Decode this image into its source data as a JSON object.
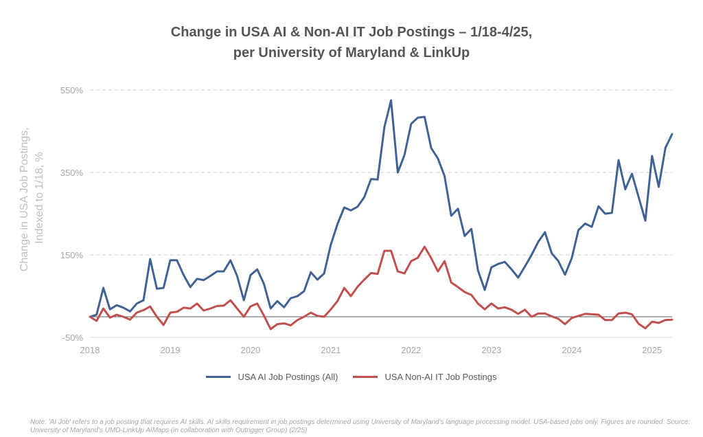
{
  "chart_data": {
    "type": "line",
    "title": "Change in USA AI & Non-AI IT Job Postings – 1/18-4/25,",
    "subtitle": "per University of Maryland & LinkUp",
    "ylabel": "Change in USA Job Postings, Indexed to 1/18, %",
    "ylabel_lines": [
      "Change in USA Job Postings,",
      "Indexed to 1/18, %"
    ],
    "xlabel": "",
    "ylim": [
      -50,
      550
    ],
    "xlim": [
      2018.0,
      2025.25
    ],
    "y_ticks": [
      -50,
      150,
      350,
      550
    ],
    "y_tick_labels": [
      "-50%",
      "150%",
      "350%",
      "550%"
    ],
    "x_ticks": [
      2018,
      2019,
      2020,
      2021,
      2022,
      2023,
      2024,
      2025
    ],
    "x_tick_labels": [
      "2018",
      "2019",
      "2020",
      "2021",
      "2022",
      "2023",
      "2024",
      "2025"
    ],
    "grid": true,
    "legend_position": "bottom",
    "series": [
      {
        "name": "USA AI Job Postings (All)",
        "color": "#3f6293",
        "values": [
          0,
          5,
          70,
          18,
          28,
          22,
          13,
          32,
          40,
          140,
          68,
          70,
          137,
          137,
          101,
          72,
          92,
          89,
          99,
          110,
          110,
          137,
          99,
          40,
          101,
          115,
          80,
          20,
          38,
          23,
          45,
          50,
          62,
          108,
          90,
          105,
          175,
          225,
          265,
          258,
          267,
          290,
          334,
          333,
          460,
          525,
          350,
          392,
          468,
          483,
          485,
          409,
          384,
          341,
          245,
          262,
          196,
          213,
          112,
          65,
          120,
          128,
          133,
          115,
          95,
          122,
          150,
          182,
          205,
          154,
          135,
          102,
          142,
          210,
          226,
          218,
          268,
          250,
          252,
          380,
          309,
          347,
          290,
          233,
          390,
          315,
          410,
          443
        ]
      },
      {
        "name": "USA Non-AI IT Job Postings",
        "color": "#c0504d",
        "values": [
          0,
          -10,
          20,
          -2,
          5,
          0,
          -7,
          10,
          16,
          25,
          0,
          -20,
          10,
          12,
          22,
          20,
          32,
          15,
          20,
          26,
          27,
          40,
          20,
          0,
          25,
          32,
          3,
          -30,
          -18,
          -16,
          -21,
          -8,
          0,
          10,
          2,
          0,
          18,
          38,
          70,
          50,
          73,
          90,
          106,
          104,
          160,
          160,
          110,
          105,
          135,
          143,
          170,
          142,
          110,
          135,
          83,
          72,
          60,
          53,
          32,
          18,
          32,
          20,
          23,
          17,
          7,
          17,
          0,
          8,
          8,
          1,
          -5,
          -18,
          -3,
          2,
          7,
          6,
          5,
          -8,
          -8,
          8,
          10,
          6,
          -17,
          -28,
          -12,
          -15,
          -8,
          -7
        ]
      }
    ]
  },
  "legend": {
    "ai_label": "USA AI Job Postings (All)",
    "nonai_label": "USA Non-AI IT Job Postings"
  },
  "note": "Note: 'AI Job' refers to a job posting that requires AI skills. AI skills requirement in job postings determined using University of Maryland's language processing model. USA-based jobs only. Figures are rounded. Source: University of Maryland's UMD-LinkUp AIMaps (in collaboration with Outrigger Group) (2/25)"
}
